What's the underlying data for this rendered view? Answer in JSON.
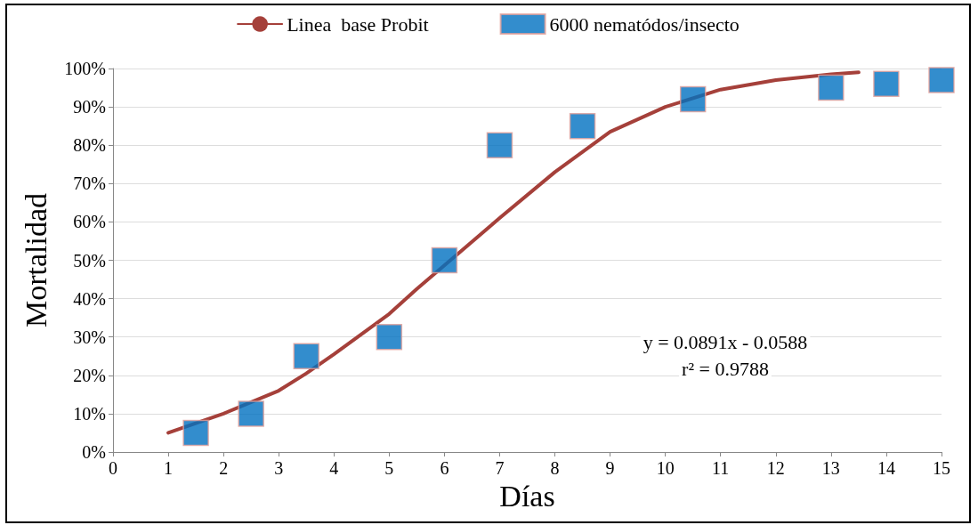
{
  "chart_data": {
    "type": "scatter",
    "xlabel": "Días",
    "ylabel": "Mortalidad",
    "xlim": [
      0,
      15
    ],
    "xticks": [
      0,
      1,
      2,
      3,
      4,
      5,
      6,
      7,
      8,
      9,
      10,
      11,
      12,
      13,
      14,
      15
    ],
    "ylim": [
      0,
      100
    ],
    "yticks": [
      {
        "value": 0,
        "label": "0%"
      },
      {
        "value": 10,
        "label": "10%"
      },
      {
        "value": 20,
        "label": "20%"
      },
      {
        "value": 30,
        "label": "30%"
      },
      {
        "value": 40,
        "label": "40%"
      },
      {
        "value": 50,
        "label": "50%"
      },
      {
        "value": 60,
        "label": "60%"
      },
      {
        "value": 70,
        "label": "70%"
      },
      {
        "value": 80,
        "label": "80%"
      },
      {
        "value": 90,
        "label": "90%"
      },
      {
        "value": 100,
        "label": "100%"
      }
    ],
    "grid": "y",
    "legend": "top",
    "marker": "square",
    "series": [
      {
        "name": "Linea  base Probit",
        "type": "line",
        "color": "#a5403a",
        "marker": "none",
        "x": [
          1,
          2,
          3,
          3.5,
          4,
          5,
          5.5,
          7,
          8,
          9,
          10,
          11,
          12,
          13,
          13.5
        ],
        "values": [
          5,
          10,
          16,
          20.5,
          25.5,
          36,
          42.5,
          61,
          73,
          83.5,
          90,
          94.5,
          97,
          98.5,
          99
        ]
      },
      {
        "name": "6000 nematódos/insecto",
        "color": "#0070c0",
        "x": [
          1.5,
          2.5,
          3.5,
          5,
          6,
          7,
          8.5,
          10.5,
          13,
          14,
          15
        ],
        "values": [
          5,
          10,
          25,
          30,
          50,
          80,
          85,
          92,
          95,
          96,
          97
        ]
      }
    ],
    "annotations": [
      "y = 0.0891x - 0.0588",
      "r² = 0.9788"
    ]
  }
}
